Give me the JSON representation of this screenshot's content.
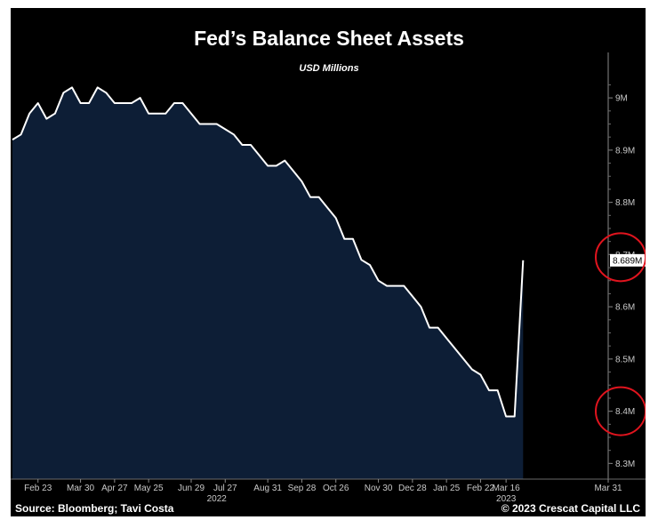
{
  "chart_data": {
    "type": "area",
    "title": "Fed’s Balance Sheet Assets",
    "subtitle": "USD Millions",
    "ylabel": "USD Millions",
    "ylim": [
      8.27,
      9.07
    ],
    "y_ticks": [
      {
        "value": 8.3,
        "label": "8.3M"
      },
      {
        "value": 8.4,
        "label": "8.4M"
      },
      {
        "value": 8.5,
        "label": "8.5M"
      },
      {
        "value": 8.6,
        "label": "8.6M"
      },
      {
        "value": 8.7,
        "label": "8.7M"
      },
      {
        "value": 8.8,
        "label": "8.8M"
      },
      {
        "value": 8.9,
        "label": "8.9M"
      },
      {
        "value": 9.0,
        "label": "9M"
      }
    ],
    "x_ticks": [
      {
        "index": 3,
        "label": "Feb 23"
      },
      {
        "index": 8,
        "label": "Mar 30"
      },
      {
        "index": 12,
        "label": "Apr 27"
      },
      {
        "index": 16,
        "label": "May 25"
      },
      {
        "index": 21,
        "label": "Jun 29"
      },
      {
        "index": 25,
        "label": "Jul 27"
      },
      {
        "index": 30,
        "label": "Aug 31"
      },
      {
        "index": 34,
        "label": "Sep 28"
      },
      {
        "index": 38,
        "label": "Oct 26"
      },
      {
        "index": 43,
        "label": "Nov 30"
      },
      {
        "index": 47,
        "label": "Dec 28"
      },
      {
        "index": 51,
        "label": "Jan 25"
      },
      {
        "index": 55,
        "label": "Feb 22"
      },
      {
        "index": 58,
        "label": "Mar 16"
      },
      {
        "index": 70,
        "label": "Mar 31"
      }
    ],
    "x_year_labels": [
      {
        "index": 24,
        "label": "2022"
      },
      {
        "index": 58,
        "label": "2023"
      }
    ],
    "series": [
      {
        "name": "Fed Balance Sheet Assets",
        "color": "#ffffff",
        "fill": "#0d1e36",
        "values": [
          8.92,
          8.93,
          8.97,
          8.99,
          8.96,
          8.97,
          9.01,
          9.02,
          8.99,
          8.99,
          9.02,
          9.01,
          8.99,
          8.99,
          8.99,
          9.0,
          8.97,
          8.97,
          8.97,
          8.99,
          8.99,
          8.97,
          8.95,
          8.95,
          8.95,
          8.94,
          8.93,
          8.91,
          8.91,
          8.89,
          8.87,
          8.87,
          8.88,
          8.86,
          8.84,
          8.81,
          8.81,
          8.79,
          8.77,
          8.73,
          8.73,
          8.69,
          8.68,
          8.65,
          8.64,
          8.64,
          8.64,
          8.62,
          8.6,
          8.56,
          8.56,
          8.54,
          8.52,
          8.5,
          8.48,
          8.47,
          8.44,
          8.44,
          8.39,
          8.39,
          8.689
        ]
      }
    ],
    "last_value_label": "8.689M",
    "highlight_circles": [
      "8.7M",
      "8.4M"
    ],
    "grid": false,
    "legend": "none"
  },
  "footer": {
    "source": "Source: Bloomberg; Tavi Costa",
    "copyright": "© 2023 Crescat Capital LLC"
  }
}
